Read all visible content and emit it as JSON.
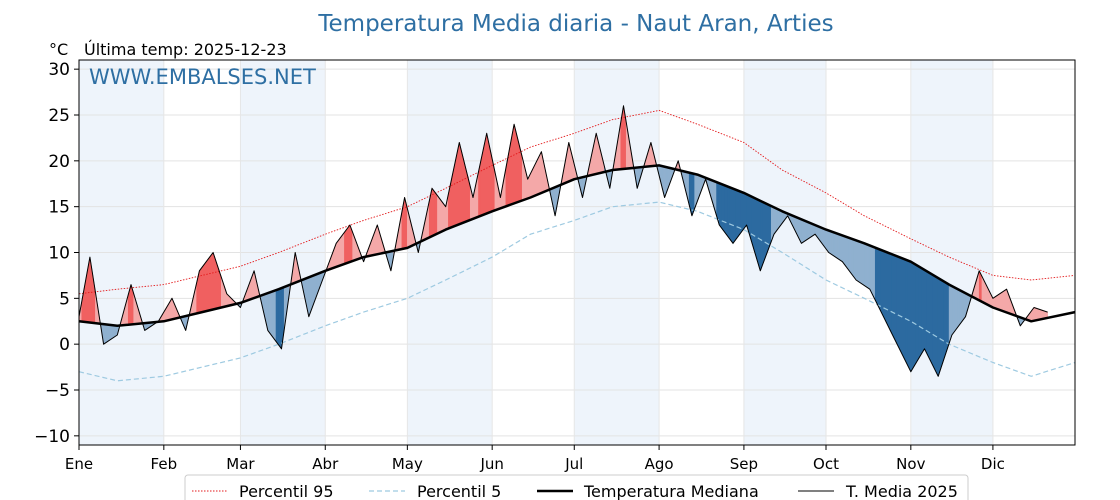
{
  "chart_data": {
    "type": "line",
    "title": "Temperatura Media diaria - Naut Aran, Arties",
    "unit_label": "°C",
    "last_temp_label": "Última temp: 2025-12-23",
    "watermark": "WWW.EMBALSES.NET",
    "ylim": [
      -11,
      31
    ],
    "yticks": [
      -10,
      -5,
      0,
      5,
      10,
      15,
      20,
      25,
      30
    ],
    "ytick_labels": [
      "−10",
      "−5",
      "0",
      "5",
      "10",
      "15",
      "20",
      "25",
      "30"
    ],
    "months": [
      "Ene",
      "Feb",
      "Mar",
      "Abr",
      "May",
      "Jun",
      "Jul",
      "Ago",
      "Sep",
      "Oct",
      "Nov",
      "Dic"
    ],
    "legend_position": "bottom-center",
    "colors": {
      "p95": "#e31a1c",
      "p5": "#9ecae1",
      "median": "#000000",
      "current": "#000000",
      "above": "#f4a8a8",
      "above_strong": "#f06060",
      "below": "#8fb0cf",
      "below_strong": "#2c6aa0",
      "band": "#eef4fb",
      "title": "#2e6fa3"
    },
    "series": [
      {
        "name": "Percentil 95",
        "style": "dotted",
        "x": [
          1,
          15,
          32,
          46,
          60,
          74,
          91,
          105,
          121,
          135,
          152,
          166,
          182,
          196,
          213,
          227,
          244,
          258,
          274,
          288,
          305,
          319,
          335,
          349,
          365
        ],
        "y": [
          5.5,
          6,
          6.5,
          7.5,
          8.5,
          10,
          12,
          13.5,
          15,
          17,
          19.5,
          21.5,
          23,
          24.5,
          25.5,
          24,
          22,
          19,
          16.5,
          14,
          11.5,
          9.5,
          7.5,
          7,
          7.5
        ]
      },
      {
        "name": "Percentil 5",
        "style": "dashed",
        "x": [
          1,
          15,
          32,
          46,
          60,
          74,
          91,
          105,
          121,
          135,
          152,
          166,
          182,
          196,
          213,
          227,
          244,
          258,
          274,
          288,
          305,
          319,
          335,
          349,
          365
        ],
        "y": [
          -3,
          -4,
          -3.5,
          -2.5,
          -1.5,
          0,
          2,
          3.5,
          5,
          7,
          9.5,
          12,
          13.5,
          15,
          15.5,
          14.5,
          12.5,
          10,
          7,
          5,
          2.5,
          0,
          -2,
          -3.5,
          -2
        ]
      },
      {
        "name": "Temperatura Mediana",
        "style": "solid-thick",
        "x": [
          1,
          15,
          32,
          46,
          60,
          74,
          91,
          105,
          121,
          135,
          152,
          166,
          182,
          196,
          213,
          227,
          244,
          258,
          274,
          288,
          305,
          319,
          335,
          349,
          365
        ],
        "y": [
          2.5,
          2,
          2.5,
          3.5,
          4.5,
          6,
          8,
          9.5,
          10.5,
          12.5,
          14.5,
          16,
          18,
          19,
          19.5,
          18.5,
          16.5,
          14.5,
          12.5,
          11,
          9,
          6.5,
          4,
          2.5,
          3.5
        ]
      },
      {
        "name": "T. Media 2025",
        "style": "solid-thin",
        "x": [
          1,
          5,
          10,
          15,
          20,
          25,
          30,
          35,
          40,
          45,
          50,
          55,
          60,
          65,
          70,
          75,
          80,
          85,
          90,
          95,
          100,
          105,
          110,
          115,
          120,
          125,
          130,
          135,
          140,
          145,
          150,
          155,
          160,
          165,
          170,
          175,
          180,
          185,
          190,
          195,
          200,
          205,
          210,
          215,
          220,
          225,
          230,
          235,
          240,
          245,
          250,
          255,
          260,
          265,
          270,
          275,
          280,
          285,
          290,
          295,
          300,
          305,
          310,
          315,
          320,
          325,
          330,
          335,
          340,
          345,
          350,
          355
        ],
        "y": [
          3,
          9.5,
          0,
          1,
          6.5,
          1.5,
          2.5,
          5,
          1.5,
          8,
          10,
          5.5,
          4,
          8,
          1.5,
          -0.5,
          10,
          3,
          7,
          11,
          13,
          9,
          13,
          8,
          16,
          10,
          17,
          15,
          22,
          16,
          23,
          16,
          24,
          18,
          21,
          14,
          22,
          16,
          23,
          17,
          26,
          17,
          22,
          16,
          20,
          14,
          18,
          13,
          11,
          13,
          8,
          12,
          14,
          11,
          12,
          10,
          9,
          7,
          6,
          3,
          0,
          -3,
          -0.5,
          -3.5,
          1,
          3,
          8,
          5,
          6,
          2,
          4,
          3.5
        ]
      }
    ]
  }
}
